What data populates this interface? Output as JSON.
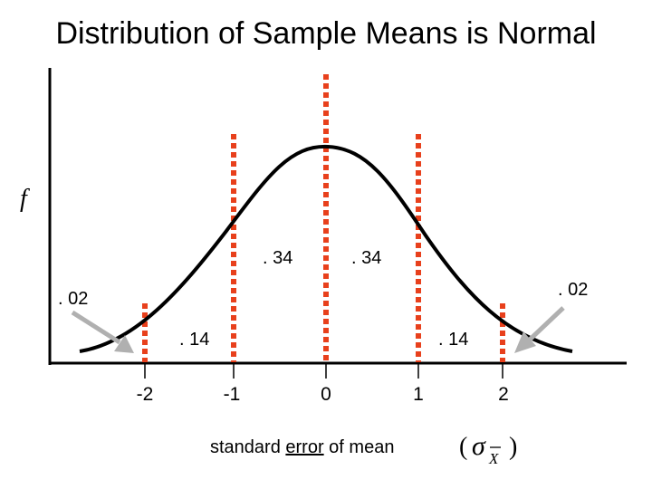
{
  "title": "Distribution of Sample Means is Normal",
  "y_label": "f",
  "x_axis": {
    "label_prefix": "standard ",
    "label_underlined": "error",
    "label_suffix": " of mean",
    "symbol_open": "(",
    "symbol_sigma": "σ",
    "symbol_sub": "X",
    "symbol_close": ")",
    "ticks": [
      "-2",
      "-1",
      "0",
      "1",
      "2"
    ]
  },
  "regions": {
    "left_inner": ". 34",
    "right_inner": ". 34",
    "left_middle": ". 14",
    "right_middle": ". 14",
    "left_tail": ". 02",
    "right_tail": ". 02"
  },
  "colors": {
    "dashed_lines": "#e8401c",
    "curve": "#000000",
    "arrows": "#b0b0b0"
  }
}
